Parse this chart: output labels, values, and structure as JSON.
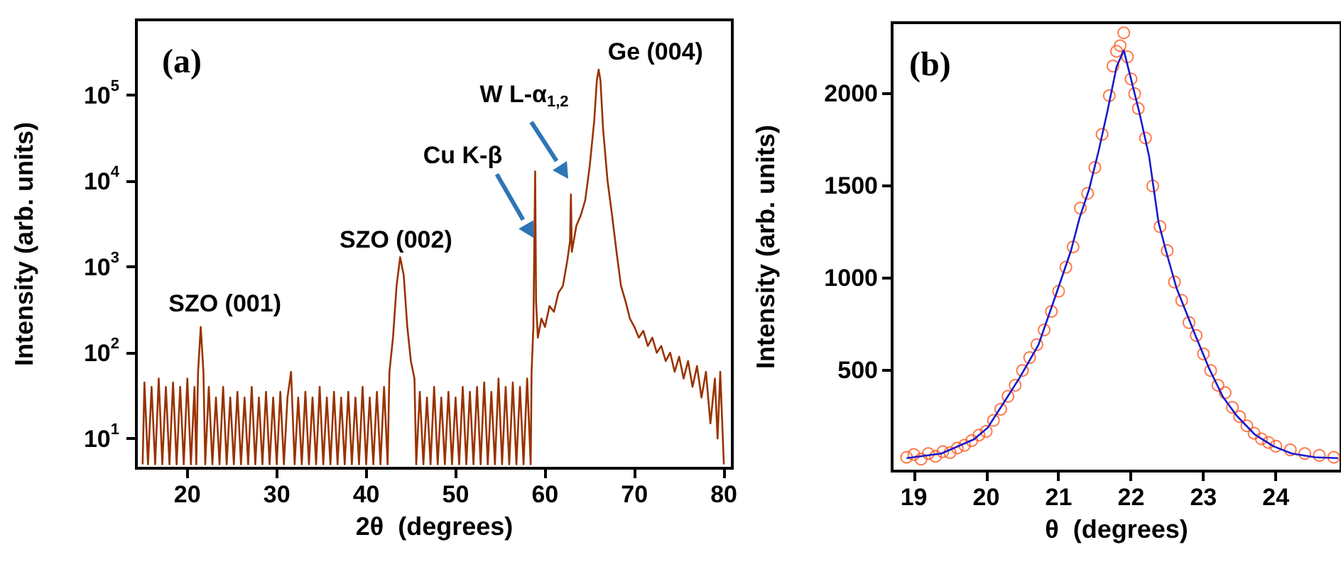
{
  "chart_data": [
    {
      "type": "line",
      "xlabel": "2θ  (degrees)",
      "ylabel": "Intensity (arb. units)",
      "log": "y",
      "xlim": [
        14.3,
        80.95
      ],
      "xticks": [
        20,
        30,
        40,
        50,
        60,
        70,
        80
      ],
      "ylim": [
        4.5,
        760000
      ],
      "yticks": [
        {
          "value": 10,
          "label": "10$^{1}$"
        },
        {
          "value": 100,
          "label": "10$^{2}$"
        },
        {
          "value": 1000,
          "label": "10$^{3}$"
        },
        {
          "value": 10000,
          "label": "10$^{4}$"
        },
        {
          "value": 100000,
          "label": "10$^{5}$"
        }
      ],
      "grid": false,
      "annotations": [
        "(a)",
        {
          "text": "SZO (001)",
          "x": 21.5,
          "y": 200
        },
        {
          "text": "SZO (002)",
          "x": 43.8,
          "y": 1300
        },
        {
          "text": "Cu K-β",
          "x": 58.9,
          "y": 13000
        },
        "W L-α$_{1,2}$",
        {
          "text": "Ge (004)",
          "x": 66.0,
          "y": 200000
        }
      ],
      "series": [
        {
          "color": "#993300",
          "marker": "none",
          "x": [
            15.0,
            15.2,
            15.6,
            16.0,
            16.4,
            16.8,
            17.2,
            17.6,
            18.0,
            18.4,
            18.8,
            19.2,
            19.6,
            20.0,
            20.4,
            20.8,
            21.0,
            21.2,
            21.5,
            21.8,
            22.0,
            22.4,
            22.8,
            23.2,
            23.6,
            24.0,
            24.4,
            24.8,
            25.2,
            25.6,
            26.0,
            26.4,
            26.8,
            27.2,
            27.6,
            28.0,
            28.4,
            28.8,
            29.2,
            29.6,
            30.0,
            30.4,
            30.8,
            31.2,
            31.6,
            32.0,
            32.4,
            32.8,
            33.2,
            33.6,
            34.0,
            34.4,
            34.8,
            35.2,
            35.6,
            36.0,
            36.4,
            36.8,
            37.2,
            37.6,
            38.0,
            38.4,
            38.8,
            39.2,
            39.6,
            40.0,
            40.4,
            40.8,
            41.2,
            41.6,
            42.0,
            42.4,
            42.6,
            43.0,
            43.4,
            43.8,
            44.2,
            44.6,
            45.0,
            45.4,
            45.6,
            46.0,
            46.4,
            46.8,
            47.2,
            47.6,
            48.0,
            48.4,
            48.8,
            49.2,
            49.6,
            50.0,
            50.4,
            50.8,
            51.2,
            51.6,
            52.0,
            52.4,
            52.8,
            53.2,
            53.6,
            54.0,
            54.4,
            54.8,
            55.2,
            55.6,
            56.0,
            56.4,
            56.8,
            57.2,
            57.6,
            58.0,
            58.4,
            58.5,
            58.7,
            58.9,
            59.0,
            59.2,
            59.6,
            60.0,
            60.5,
            61.0,
            61.5,
            62.0,
            62.5,
            62.8,
            62.9,
            63.0,
            63.5,
            64.0,
            64.5,
            65.0,
            65.5,
            65.8,
            66.0,
            66.2,
            66.5,
            67.0,
            67.5,
            68.0,
            68.5,
            69.0,
            69.5,
            70.0,
            70.5,
            71.0,
            71.5,
            72.0,
            72.5,
            73.0,
            73.5,
            74.0,
            74.5,
            75.0,
            75.5,
            76.0,
            76.5,
            77.0,
            77.5,
            78.0,
            78.5,
            79.0,
            79.3,
            79.6,
            80.0
          ],
          "values": [
            5,
            45,
            5,
            40,
            5,
            50,
            5,
            40,
            5,
            45,
            5,
            40,
            5,
            50,
            5,
            40,
            5,
            60,
            200,
            60,
            5,
            40,
            5,
            30,
            5,
            40,
            5,
            30,
            5,
            35,
            5,
            30,
            5,
            40,
            5,
            30,
            5,
            35,
            5,
            30,
            5,
            35,
            5,
            30,
            60,
            5,
            30,
            5,
            35,
            5,
            30,
            5,
            40,
            5,
            30,
            5,
            35,
            5,
            30,
            5,
            35,
            5,
            30,
            5,
            40,
            5,
            30,
            5,
            35,
            5,
            40,
            5,
            60,
            150,
            600,
            1300,
            800,
            200,
            80,
            50,
            5,
            35,
            5,
            30,
            5,
            40,
            5,
            30,
            5,
            35,
            5,
            30,
            5,
            40,
            5,
            35,
            5,
            40,
            5,
            45,
            5,
            35,
            5,
            50,
            5,
            40,
            5,
            45,
            5,
            40,
            5,
            50,
            5,
            60,
            200,
            13000,
            400,
            150,
            250,
            200,
            350,
            300,
            500,
            600,
            1200,
            2000,
            7000,
            1500,
            3000,
            4000,
            6000,
            15000,
            50000,
            150000,
            200000,
            150000,
            40000,
            10000,
            4000,
            1500,
            600,
            400,
            250,
            200,
            150,
            180,
            120,
            150,
            100,
            120,
            80,
            100,
            60,
            90,
            50,
            80,
            40,
            70,
            30,
            60,
            15,
            50,
            10,
            60,
            5
          ]
        }
      ]
    },
    {
      "type": "scatter",
      "xlabel": "θ  (degrees)",
      "ylabel": "Intensity (arb. units)",
      "xlim": [
        18.7,
        24.9
      ],
      "xticks": [
        19,
        20,
        21,
        22,
        23,
        24
      ],
      "ylim": [
        -45,
        2385
      ],
      "yticks": [
        500,
        1000,
        1500,
        2000
      ],
      "grid": false,
      "annotations": [
        "(b)"
      ],
      "series": [
        {
          "color": "#ff5a1f",
          "marker": "circle",
          "x": [
            18.9,
            19.0,
            19.1,
            19.2,
            19.3,
            19.4,
            19.5,
            19.6,
            19.7,
            19.8,
            19.9,
            20.0,
            20.1,
            20.2,
            20.3,
            20.4,
            20.5,
            20.6,
            20.7,
            20.8,
            20.9,
            21.0,
            21.1,
            21.2,
            21.3,
            21.4,
            21.5,
            21.6,
            21.7,
            21.75,
            21.8,
            21.85,
            21.9,
            21.95,
            22.0,
            22.05,
            22.1,
            22.2,
            22.3,
            22.4,
            22.5,
            22.6,
            22.7,
            22.8,
            22.9,
            23.0,
            23.1,
            23.2,
            23.3,
            23.4,
            23.5,
            23.6,
            23.7,
            23.8,
            23.9,
            24.0,
            24.2,
            24.4,
            24.6,
            24.8
          ],
          "values": [
            30,
            45,
            20,
            50,
            35,
            60,
            55,
            80,
            95,
            120,
            150,
            170,
            230,
            290,
            360,
            420,
            500,
            570,
            640,
            720,
            820,
            930,
            1060,
            1170,
            1380,
            1460,
            1600,
            1780,
            1990,
            2150,
            2230,
            2260,
            2330,
            2200,
            2080,
            2000,
            1920,
            1760,
            1500,
            1280,
            1150,
            980,
            880,
            760,
            690,
            590,
            500,
            420,
            380,
            300,
            250,
            200,
            160,
            130,
            110,
            90,
            70,
            50,
            40,
            30
          ]
        },
        {
          "type": "line",
          "color": "#1a1acc",
          "marker": "none",
          "x": [
            18.9,
            19.38,
            19.83,
            20.02,
            20.21,
            20.46,
            20.72,
            20.97,
            21.17,
            21.29,
            21.42,
            21.55,
            21.68,
            21.8,
            21.9,
            21.99,
            22.12,
            22.25,
            22.38,
            22.5,
            22.63,
            22.76,
            22.89,
            23.08,
            23.27,
            23.46,
            23.71,
            23.97,
            24.22,
            24.54,
            24.86
          ],
          "values": [
            25,
            50,
            127,
            190,
            306,
            460,
            638,
            919,
            1149,
            1328,
            1481,
            1686,
            1916,
            2146,
            2235,
            2095,
            1890,
            1660,
            1302,
            1124,
            945,
            817,
            689,
            510,
            357,
            255,
            153,
            89,
            50,
            30,
            25
          ]
        }
      ]
    }
  ]
}
